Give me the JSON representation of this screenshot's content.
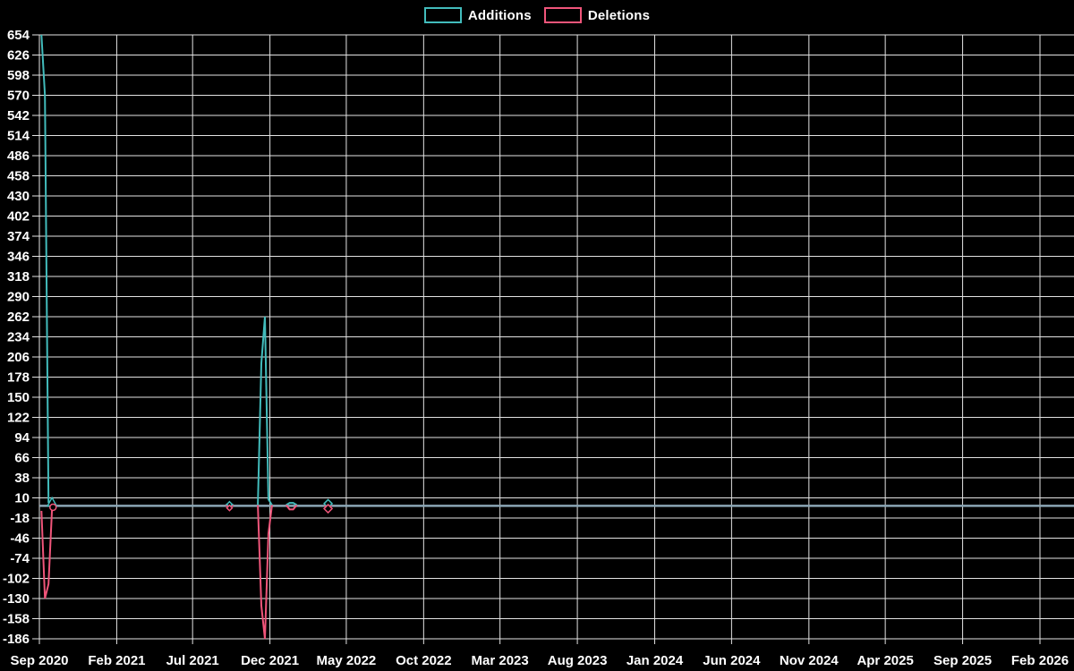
{
  "legend": {
    "items": [
      {
        "label": "Additions",
        "color": "#42bcbc"
      },
      {
        "label": "Deletions",
        "color": "#f0557a"
      }
    ]
  },
  "chart_data": {
    "type": "line",
    "title": "",
    "xlabel": "",
    "ylabel": "",
    "colors": {
      "background": "#000000",
      "grid": "#e3e3e3",
      "text": "#ffffff"
    },
    "x_axis": {
      "type": "time",
      "start": "2020-09-01",
      "end": "2026-02-01",
      "gridlines": true,
      "ticks": [
        {
          "label": "Sep 2020",
          "date": "2020-09-01"
        },
        {
          "label": "Feb 2021",
          "date": "2021-02-01"
        },
        {
          "label": "Jul 2021",
          "date": "2021-07-01"
        },
        {
          "label": "Dec 2021",
          "date": "2021-12-01"
        },
        {
          "label": "May 2022",
          "date": "2022-05-01"
        },
        {
          "label": "Oct 2022",
          "date": "2022-10-01"
        },
        {
          "label": "Mar 2023",
          "date": "2023-03-01"
        },
        {
          "label": "Aug 2023",
          "date": "2023-08-01"
        },
        {
          "label": "Jan 2024",
          "date": "2024-01-01"
        },
        {
          "label": "Jun 2024",
          "date": "2024-06-01"
        },
        {
          "label": "Nov 2024",
          "date": "2024-11-01"
        },
        {
          "label": "Apr 2025",
          "date": "2025-04-01"
        },
        {
          "label": "Sep 2025",
          "date": "2025-09-01"
        },
        {
          "label": "Feb 2026",
          "date": "2026-02-01"
        }
      ]
    },
    "y_axis": {
      "min": -186,
      "max": 654,
      "gridlines": true,
      "ticks": [
        654,
        626,
        598,
        570,
        542,
        514,
        486,
        458,
        430,
        402,
        374,
        346,
        318,
        290,
        262,
        234,
        206,
        178,
        150,
        122,
        94,
        66,
        38,
        10,
        -18,
        -46,
        -74,
        -102,
        -130,
        -158,
        -186
      ]
    },
    "baseline": {
      "value": -1,
      "color": "#8ba6b5",
      "width": 2.5,
      "note": "flat zero line where both series overlap"
    },
    "series": [
      {
        "name": "Additions",
        "color": "#42bcbc",
        "clusters": [
          [
            [
              "2020-09-05",
              654
            ],
            [
              "2020-09-12",
              570
            ],
            [
              "2020-09-19",
              4
            ],
            [
              "2020-09-26",
              2
            ],
            [
              "2020-10-03",
              0
            ]
          ],
          [
            [
              "2021-09-05",
              0
            ],
            [
              "2021-09-12",
              3
            ],
            [
              "2021-09-19",
              0
            ]
          ],
          [
            [
              "2021-11-07",
              0
            ],
            [
              "2021-11-14",
              197
            ],
            [
              "2021-11-21",
              262
            ],
            [
              "2021-11-28",
              8
            ],
            [
              "2021-12-05",
              0
            ]
          ],
          [
            [
              "2022-01-02",
              0
            ],
            [
              "2022-01-09",
              3
            ],
            [
              "2022-01-16",
              3
            ],
            [
              "2022-01-23",
              0
            ]
          ],
          [
            [
              "2022-03-19",
              0
            ],
            [
              "2022-03-26",
              3
            ],
            [
              "2022-04-02",
              0
            ]
          ]
        ]
      },
      {
        "name": "Deletions",
        "color": "#f0557a",
        "clusters": [
          [
            [
              "2020-09-05",
              -8
            ],
            [
              "2020-09-12",
              -130
            ],
            [
              "2020-09-19",
              -110
            ],
            [
              "2020-09-26",
              -6
            ],
            [
              "2020-10-03",
              0
            ]
          ],
          [
            [
              "2021-09-05",
              0
            ],
            [
              "2021-09-12",
              -4
            ],
            [
              "2021-09-19",
              0
            ]
          ],
          [
            [
              "2021-11-07",
              0
            ],
            [
              "2021-11-14",
              -140
            ],
            [
              "2021-11-21",
              -186
            ],
            [
              "2021-11-28",
              -40
            ],
            [
              "2021-12-05",
              0
            ]
          ],
          [
            [
              "2022-01-02",
              0
            ],
            [
              "2022-01-09",
              -6
            ],
            [
              "2022-01-16",
              -6
            ],
            [
              "2022-01-23",
              0
            ]
          ],
          [
            [
              "2022-03-19",
              0
            ],
            [
              "2022-03-26",
              -5
            ],
            [
              "2022-04-02",
              0
            ]
          ]
        ]
      }
    ],
    "markers": [
      {
        "series": "Additions",
        "shape": "triangle",
        "date": "2020-09-26",
        "value": 4,
        "size": 10
      },
      {
        "series": "Deletions",
        "shape": "circle",
        "date": "2020-09-28",
        "value": -3,
        "size": 7
      },
      {
        "series": "Additions",
        "shape": "diamond",
        "date": "2021-09-12",
        "value": 1,
        "size": 6
      },
      {
        "series": "Deletions",
        "shape": "diamond",
        "date": "2021-09-12",
        "value": -4,
        "size": 6
      },
      {
        "series": "Additions",
        "shape": "diamond",
        "date": "2022-03-26",
        "value": 2,
        "size": 9
      },
      {
        "series": "Deletions",
        "shape": "diamond",
        "date": "2022-03-26",
        "value": -5,
        "size": 9
      }
    ]
  }
}
